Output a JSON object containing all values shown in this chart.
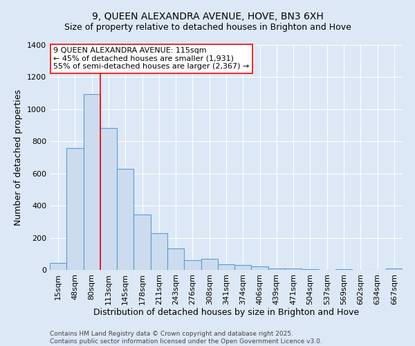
{
  "title": "9, QUEEN ALEXANDRA AVENUE, HOVE, BN3 6XH",
  "subtitle": "Size of property relative to detached houses in Brighton and Hove",
  "xlabel": "Distribution of detached houses by size in Brighton and Hove",
  "ylabel": "Number of detached properties",
  "categories": [
    "15sqm",
    "48sqm",
    "80sqm",
    "113sqm",
    "145sqm",
    "178sqm",
    "211sqm",
    "243sqm",
    "276sqm",
    "308sqm",
    "341sqm",
    "374sqm",
    "406sqm",
    "439sqm",
    "471sqm",
    "504sqm",
    "537sqm",
    "569sqm",
    "602sqm",
    "634sqm",
    "667sqm"
  ],
  "values": [
    45,
    760,
    1095,
    885,
    630,
    345,
    230,
    135,
    60,
    68,
    35,
    32,
    22,
    10,
    8,
    5,
    0,
    5,
    0,
    2,
    10
  ],
  "bar_color": "#ccdcee",
  "bar_edge_color": "#5b9bd5",
  "red_line_index": 3,
  "annotation_text_line1": "9 QUEEN ALEXANDRA AVENUE: 115sqm",
  "annotation_text_line2": "← 45% of detached houses are smaller (1,931)",
  "annotation_text_line3": "55% of semi-detached houses are larger (2,367) →",
  "ylim": [
    0,
    1400
  ],
  "yticks": [
    0,
    200,
    400,
    600,
    800,
    1000,
    1200,
    1400
  ],
  "footnote1": "Contains HM Land Registry data © Crown copyright and database right 2025.",
  "footnote2": "Contains public sector information licensed under the Open Government Licence v3.0.",
  "bg_color": "#dce8f5",
  "plot_bg_color": "#dce8f5",
  "title_fontsize": 10,
  "subtitle_fontsize": 9,
  "axis_label_fontsize": 9,
  "tick_fontsize": 8,
  "ann_fontsize": 8,
  "footnote_fontsize": 6.5
}
